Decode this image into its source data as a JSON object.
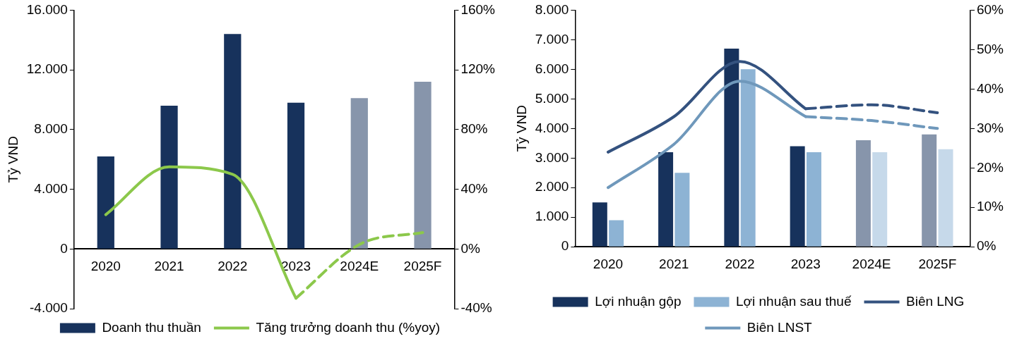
{
  "chart_data": [
    {
      "type": "bar",
      "ylabel": "Tỷ VND",
      "categories": [
        "2020",
        "2021",
        "2022",
        "2023",
        "2024E",
        "2025F"
      ],
      "series": [
        {
          "name": "Doanh thu thuần",
          "color": "#17325c",
          "colors": [
            "#17325c",
            "#17325c",
            "#17325c",
            "#17325c",
            "#8795ab",
            "#8795ab"
          ],
          "values": [
            6200,
            9600,
            14400,
            9800,
            10100,
            11200
          ]
        },
        {
          "name": "Tăng trưởng doanh thu (%yoy)",
          "type": "line",
          "axis": "y2",
          "color": "#8cc84b",
          "line_style": "solid",
          "values": [
            23,
            55,
            50,
            -33,
            null,
            null
          ]
        },
        {
          "type": "line",
          "axis": "y2",
          "color": "#8cc84b",
          "line_style": "dashed",
          "values": [
            null,
            null,
            null,
            -33,
            3,
            11
          ]
        }
      ],
      "ylim": [
        -4000,
        16000
      ],
      "yticks": [
        {
          "value": -4000,
          "label": "-4.000"
        },
        0,
        {
          "value": 4000,
          "label": "4.000"
        },
        {
          "value": 8000,
          "label": "8.000"
        },
        {
          "value": 12000,
          "label": "12.000"
        },
        {
          "value": 16000,
          "label": "16.000"
        }
      ],
      "y2lim": [
        -40,
        160
      ],
      "y2ticks": [
        {
          "value": -40,
          "label": "-40%"
        },
        {
          "value": 0,
          "label": "0%"
        },
        {
          "value": 40,
          "label": "40%"
        },
        {
          "value": 80,
          "label": "80%"
        },
        {
          "value": 120,
          "label": "120%"
        },
        {
          "value": 160,
          "label": "160%"
        }
      ],
      "grid": false,
      "legend": "bottom"
    },
    {
      "type": "bar",
      "ylabel": "Tỷ VND",
      "categories": [
        "2020",
        "2021",
        "2022",
        "2023",
        "2024E",
        "2025F"
      ],
      "series": [
        {
          "name": "Lợi nhuận gộp",
          "color": "#17325c",
          "colors": [
            "#17325c",
            "#17325c",
            "#17325c",
            "#17325c",
            "#8795ab",
            "#8795ab"
          ],
          "values": [
            1500,
            3200,
            6700,
            3400,
            3600,
            3800
          ]
        },
        {
          "name": "Lợi nhuận sau thuế",
          "color": "#8db3d4",
          "colors": [
            "#8db3d4",
            "#8db3d4",
            "#8db3d4",
            "#8db3d4",
            "#c6d9ea",
            "#c6d9ea"
          ],
          "values": [
            900,
            2500,
            6000,
            3200,
            3200,
            3300
          ]
        },
        {
          "name": "Biên LNG",
          "type": "line",
          "axis": "y2",
          "color": "#34527f",
          "line_style": "solid",
          "values": [
            24,
            33,
            47,
            35,
            null,
            null
          ]
        },
        {
          "name": "Biên LNST",
          "type": "line",
          "axis": "y2",
          "color": "#6f98bb",
          "line_style": "solid",
          "values": [
            15,
            26,
            42,
            33,
            null,
            null
          ]
        },
        {
          "type": "line",
          "axis": "y2",
          "color": "#34527f",
          "line_style": "dashed",
          "values": [
            null,
            null,
            null,
            35,
            36,
            34
          ]
        },
        {
          "type": "line",
          "axis": "y2",
          "color": "#6f98bb",
          "line_style": "dashed",
          "values": [
            null,
            null,
            null,
            33,
            32,
            30
          ]
        }
      ],
      "ylim": [
        0,
        8000
      ],
      "yticks": [
        0,
        {
          "value": 1000,
          "label": "1.000"
        },
        {
          "value": 2000,
          "label": "2.000"
        },
        {
          "value": 3000,
          "label": "3.000"
        },
        {
          "value": 4000,
          "label": "4.000"
        },
        {
          "value": 5000,
          "label": "5.000"
        },
        {
          "value": 6000,
          "label": "6.000"
        },
        {
          "value": 7000,
          "label": "7.000"
        },
        {
          "value": 8000,
          "label": "8.000"
        }
      ],
      "y2lim": [
        0,
        60
      ],
      "y2ticks": [
        {
          "value": 0,
          "label": "0%"
        },
        {
          "value": 10,
          "label": "10%"
        },
        {
          "value": 20,
          "label": "20%"
        },
        {
          "value": 30,
          "label": "30%"
        },
        {
          "value": 40,
          "label": "40%"
        },
        {
          "value": 50,
          "label": "50%"
        },
        {
          "value": 60,
          "label": "60%"
        }
      ],
      "grid": false,
      "legend": "bottom"
    }
  ]
}
